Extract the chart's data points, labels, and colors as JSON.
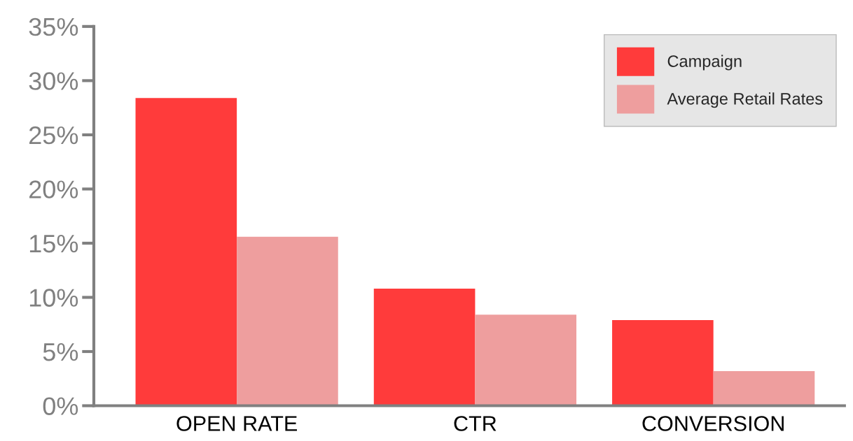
{
  "chart_data": {
    "type": "bar",
    "categories": [
      "OPEN RATE",
      "CTR",
      "CONVERSION"
    ],
    "series": [
      {
        "name": "Campaign",
        "color": "#ff3b3b",
        "values": [
          28.4,
          10.8,
          7.9
        ]
      },
      {
        "name": "Average Retail Rates",
        "color": "#ee9e9e",
        "values": [
          15.6,
          8.4,
          3.2
        ]
      }
    ],
    "ylim": [
      0,
      35
    ],
    "yticks": [
      {
        "value": 0,
        "label": "0%"
      },
      {
        "value": 5,
        "label": "5%"
      },
      {
        "value": 10,
        "label": "10%"
      },
      {
        "value": 15,
        "label": "15%"
      },
      {
        "value": 20,
        "label": "20%"
      },
      {
        "value": 25,
        "label": "25%"
      },
      {
        "value": 30,
        "label": "30%"
      },
      {
        "value": 35,
        "label": "35%"
      }
    ],
    "grid": false,
    "legend": "top right"
  }
}
